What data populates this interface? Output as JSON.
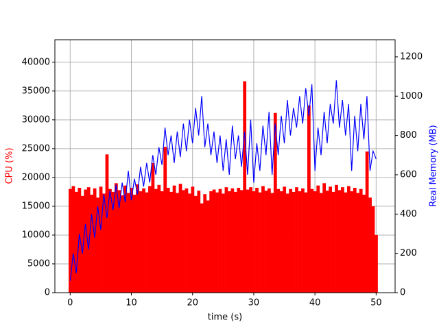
{
  "chart_data": {
    "type": "line",
    "xlabel": "time (s)",
    "ylabel": "CPU (%)",
    "y2label": "Real Memory (MB)",
    "xlim": [
      -2.5,
      53.1
    ],
    "ylim": [
      0,
      43900
    ],
    "y2lim": [
      0,
      1287
    ],
    "xticks": [
      0,
      10,
      20,
      30,
      40,
      50
    ],
    "yticks": [
      0,
      5000,
      10000,
      15000,
      20000,
      25000,
      30000,
      35000,
      40000
    ],
    "y2ticks": [
      0,
      200,
      400,
      600,
      800,
      1000,
      1200
    ],
    "grid": true,
    "x": [
      0,
      0.5,
      1,
      1.5,
      2,
      2.5,
      3,
      3.5,
      4,
      4.5,
      5,
      5.5,
      6,
      6.5,
      7,
      7.5,
      8,
      8.5,
      9,
      9.5,
      10,
      10.5,
      11,
      11.5,
      12,
      12.5,
      13,
      13.5,
      14,
      14.5,
      15,
      15.5,
      16,
      16.5,
      17,
      17.5,
      18,
      18.5,
      19,
      19.5,
      20,
      20.5,
      21,
      21.5,
      22,
      22.5,
      23,
      23.5,
      24,
      24.5,
      25,
      25.5,
      26,
      26.5,
      27,
      27.5,
      28,
      28.5,
      29,
      29.5,
      30,
      30.5,
      31,
      31.5,
      32,
      32.5,
      33,
      33.5,
      34,
      34.5,
      35,
      35.5,
      36,
      36.5,
      37,
      37.5,
      38,
      38.5,
      39,
      39.5,
      40,
      40.5,
      41,
      41.5,
      42,
      42.5,
      43,
      43.5,
      44,
      44.5,
      45,
      45.5,
      46,
      46.5,
      47,
      47.5,
      48,
      48.5,
      49,
      49.5,
      50
    ],
    "series": [
      {
        "color": "#ff0000",
        "style": "bars",
        "values": [
          18000,
          18500,
          17500,
          18200,
          16800,
          17900,
          18300,
          17000,
          18100,
          16500,
          18400,
          17200,
          24000,
          18000,
          17500,
          19000,
          17800,
          16900,
          18600,
          17300,
          18200,
          17000,
          18800,
          17600,
          18100,
          17400,
          18500,
          22500,
          18000,
          18700,
          17600,
          25300,
          18200,
          17500,
          18600,
          17300,
          18900,
          17800,
          18100,
          17200,
          18400,
          16800,
          17700,
          15500,
          17100,
          16000,
          17600,
          17900,
          17400,
          18000,
          17200,
          18300,
          17600,
          18100,
          17500,
          18200,
          17800,
          36700,
          17900,
          18300,
          17600,
          18200,
          17400,
          18500,
          17700,
          18100,
          17300,
          31200,
          18000,
          17600,
          18400,
          17200,
          18000,
          17500,
          18300,
          17600,
          18100,
          17400,
          32500,
          18000,
          17600,
          18600,
          17300,
          19000,
          17700,
          18400,
          17500,
          18700,
          17800,
          18300,
          17400,
          18500,
          17600,
          18200,
          17300,
          18000,
          17000,
          24500,
          16500,
          15000,
          10000
        ]
      },
      {
        "color": "#0000ff",
        "style": "line",
        "axis": "y2",
        "values": [
          60,
          200,
          100,
          300,
          200,
          350,
          220,
          400,
          280,
          440,
          320,
          500,
          380,
          520,
          420,
          550,
          430,
          560,
          460,
          620,
          470,
          580,
          500,
          640,
          540,
          660,
          560,
          700,
          600,
          740,
          650,
          840,
          700,
          800,
          660,
          820,
          690,
          860,
          720,
          880,
          760,
          940,
          800,
          1000,
          740,
          860,
          700,
          820,
          660,
          800,
          620,
          780,
          600,
          850,
          680,
          800,
          640,
          820,
          600,
          880,
          560,
          760,
          620,
          850,
          700,
          920,
          600,
          860,
          700,
          900,
          760,
          980,
          800,
          940,
          840,
          1000,
          860,
          1040,
          900,
          1060,
          620,
          840,
          700,
          920,
          760,
          960,
          860,
          1080,
          840,
          980,
          800,
          960,
          620,
          900,
          720,
          960,
          780,
          1000,
          620,
          720,
          680
        ]
      }
    ]
  }
}
